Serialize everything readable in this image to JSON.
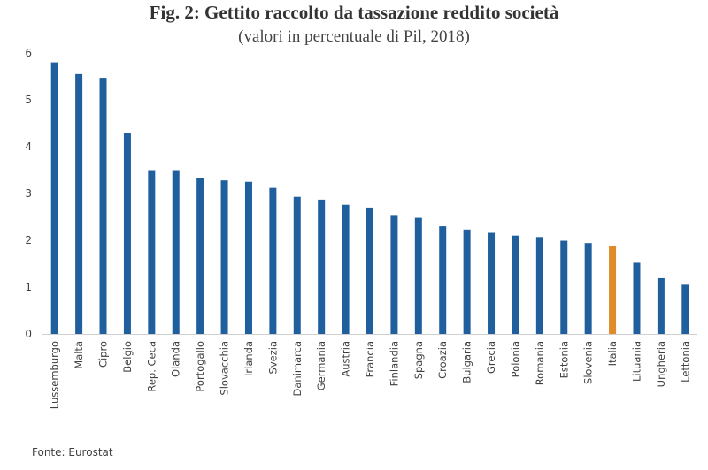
{
  "chart_data": {
    "type": "bar",
    "title": "Fig. 2: Gettito raccolto da tassazione reddito società",
    "subtitle": "(valori in percentuale di Pil, 2018)",
    "categories": [
      "Lussemburgo",
      "Malta",
      "Cipro",
      "Belgio",
      "Rep. Ceca",
      "Olanda",
      "Portogallo",
      "Slovacchia",
      "Irlanda",
      "Svezia",
      "Danimarca",
      "Germania",
      "Austria",
      "Francia",
      "Finlandia",
      "Spagna",
      "Croazia",
      "Bulgaria",
      "Grecia",
      "Polonia",
      "Romania",
      "Estonia",
      "Slovenia",
      "Italia",
      "Lituania",
      "Ungheria",
      "Lettonia"
    ],
    "values": [
      5.8,
      5.55,
      5.47,
      4.3,
      3.5,
      3.5,
      3.33,
      3.28,
      3.25,
      3.12,
      2.93,
      2.87,
      2.76,
      2.7,
      2.54,
      2.48,
      2.3,
      2.23,
      2.16,
      2.1,
      2.07,
      1.99,
      1.94,
      1.87,
      1.52,
      1.19,
      1.05
    ],
    "highlight": "Italia",
    "yticks": [
      "0",
      "1",
      "2",
      "3",
      "4",
      "5",
      "6"
    ],
    "ylim": [
      0,
      6
    ],
    "xlabel": "",
    "ylabel": "",
    "grid": false,
    "colors": {
      "bar": "#1f5f9e",
      "highlight": "#e08a2a",
      "axis": "#d0d0d0",
      "text": "#404040"
    }
  },
  "source": "Fonte: Eurostat"
}
